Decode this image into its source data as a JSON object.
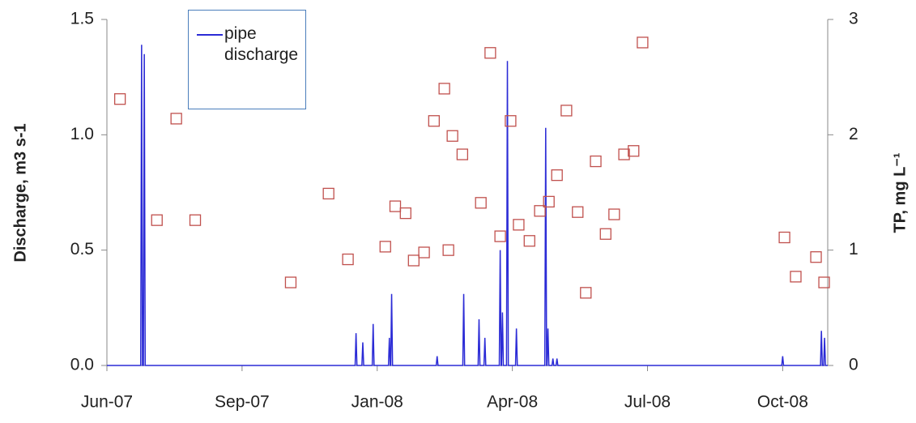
{
  "chart_data": {
    "type": "line-scatter",
    "ylabel": "Discharge, m3 s-1",
    "y2label": "TP, mg L⁻¹",
    "xlim": [
      0,
      16
    ],
    "xticks": [
      {
        "value": 0,
        "label": "Jun-07"
      },
      {
        "value": 3,
        "label": "Sep-07"
      },
      {
        "value": 6,
        "label": "Jan-08"
      },
      {
        "value": 9,
        "label": "Apr-08"
      },
      {
        "value": 12,
        "label": "Jul-08"
      },
      {
        "value": 15,
        "label": "Oct-08"
      }
    ],
    "ylim": [
      0,
      1.5
    ],
    "yticks": [
      {
        "value": 0,
        "label": "0.0"
      },
      {
        "value": 0.5,
        "label": "0.5"
      },
      {
        "value": 1,
        "label": "1.0"
      },
      {
        "value": 1.5,
        "label": "1.5"
      }
    ],
    "y2lim": [
      0,
      3
    ],
    "y2ticks": [
      0,
      1,
      2,
      3
    ],
    "series": [
      {
        "name": "pipe discharge",
        "type": "line",
        "color": "#2b2bd6",
        "x": [
          0,
          0.75,
          0.77,
          0.79,
          0.81,
          0.83,
          0.85,
          5.51,
          5.53,
          5.55,
          5.66,
          5.68,
          5.7,
          5.89,
          5.91,
          5.93,
          6.25,
          6.27,
          6.29,
          6.3,
          6.32,
          6.34,
          7.31,
          7.33,
          7.35,
          7.9,
          7.92,
          7.94,
          8.24,
          8.26,
          8.28,
          8.37,
          8.39,
          8.41,
          8.71,
          8.73,
          8.75,
          8.76,
          8.78,
          8.8,
          8.87,
          8.89,
          8.91,
          9.07,
          9.09,
          9.11,
          9.72,
          9.74,
          9.76,
          9.77,
          9.79,
          9.81,
          9.88,
          9.9,
          9.92,
          9.97,
          9.99,
          10.01,
          14.98,
          15.0,
          15.02,
          15.84,
          15.86,
          15.88,
          15.91,
          15.93,
          15.95,
          16
        ],
        "values": [
          0,
          0,
          1.39,
          0,
          0,
          1.35,
          0,
          0,
          0.14,
          0,
          0,
          0.1,
          0,
          0,
          0.18,
          0,
          0,
          0.12,
          0,
          0,
          0.31,
          0,
          0,
          0.04,
          0,
          0,
          0.31,
          0,
          0,
          0.2,
          0,
          0,
          0.12,
          0,
          0,
          0.5,
          0,
          0,
          0.23,
          0,
          0,
          1.32,
          0,
          0,
          0.16,
          0,
          0,
          1.03,
          0,
          0,
          0.16,
          0,
          0,
          0.03,
          0,
          0,
          0.03,
          0,
          0,
          0.04,
          0,
          0,
          0.15,
          0,
          0,
          0.12,
          0,
          0
        ]
      },
      {
        "type": "scatter",
        "axis": "y2",
        "color": "#c0504d",
        "x": [
          0.29,
          1.11,
          1.54,
          1.96,
          4.08,
          4.92,
          5.35,
          6.18,
          6.4,
          6.63,
          6.81,
          7.04,
          7.26,
          7.49,
          7.58,
          7.67,
          7.89,
          8.3,
          8.51,
          8.73,
          8.96,
          9.14,
          9.38,
          9.61,
          9.81,
          9.99,
          10.2,
          10.45,
          10.63,
          10.85,
          11.07,
          11.26,
          11.48,
          11.69,
          11.89,
          15.04,
          15.29,
          15.74,
          15.92
        ],
        "values": [
          2.31,
          1.26,
          2.14,
          1.26,
          0.72,
          1.49,
          0.92,
          1.03,
          1.38,
          1.32,
          0.91,
          0.98,
          2.12,
          2.4,
          1.0,
          1.99,
          1.83,
          1.41,
          2.71,
          1.12,
          2.12,
          1.22,
          1.08,
          1.34,
          1.42,
          1.65,
          2.21,
          1.33,
          0.63,
          1.77,
          1.14,
          1.31,
          1.83,
          1.86,
          2.8,
          1.11,
          0.77,
          0.94,
          0.72
        ]
      }
    ]
  }
}
